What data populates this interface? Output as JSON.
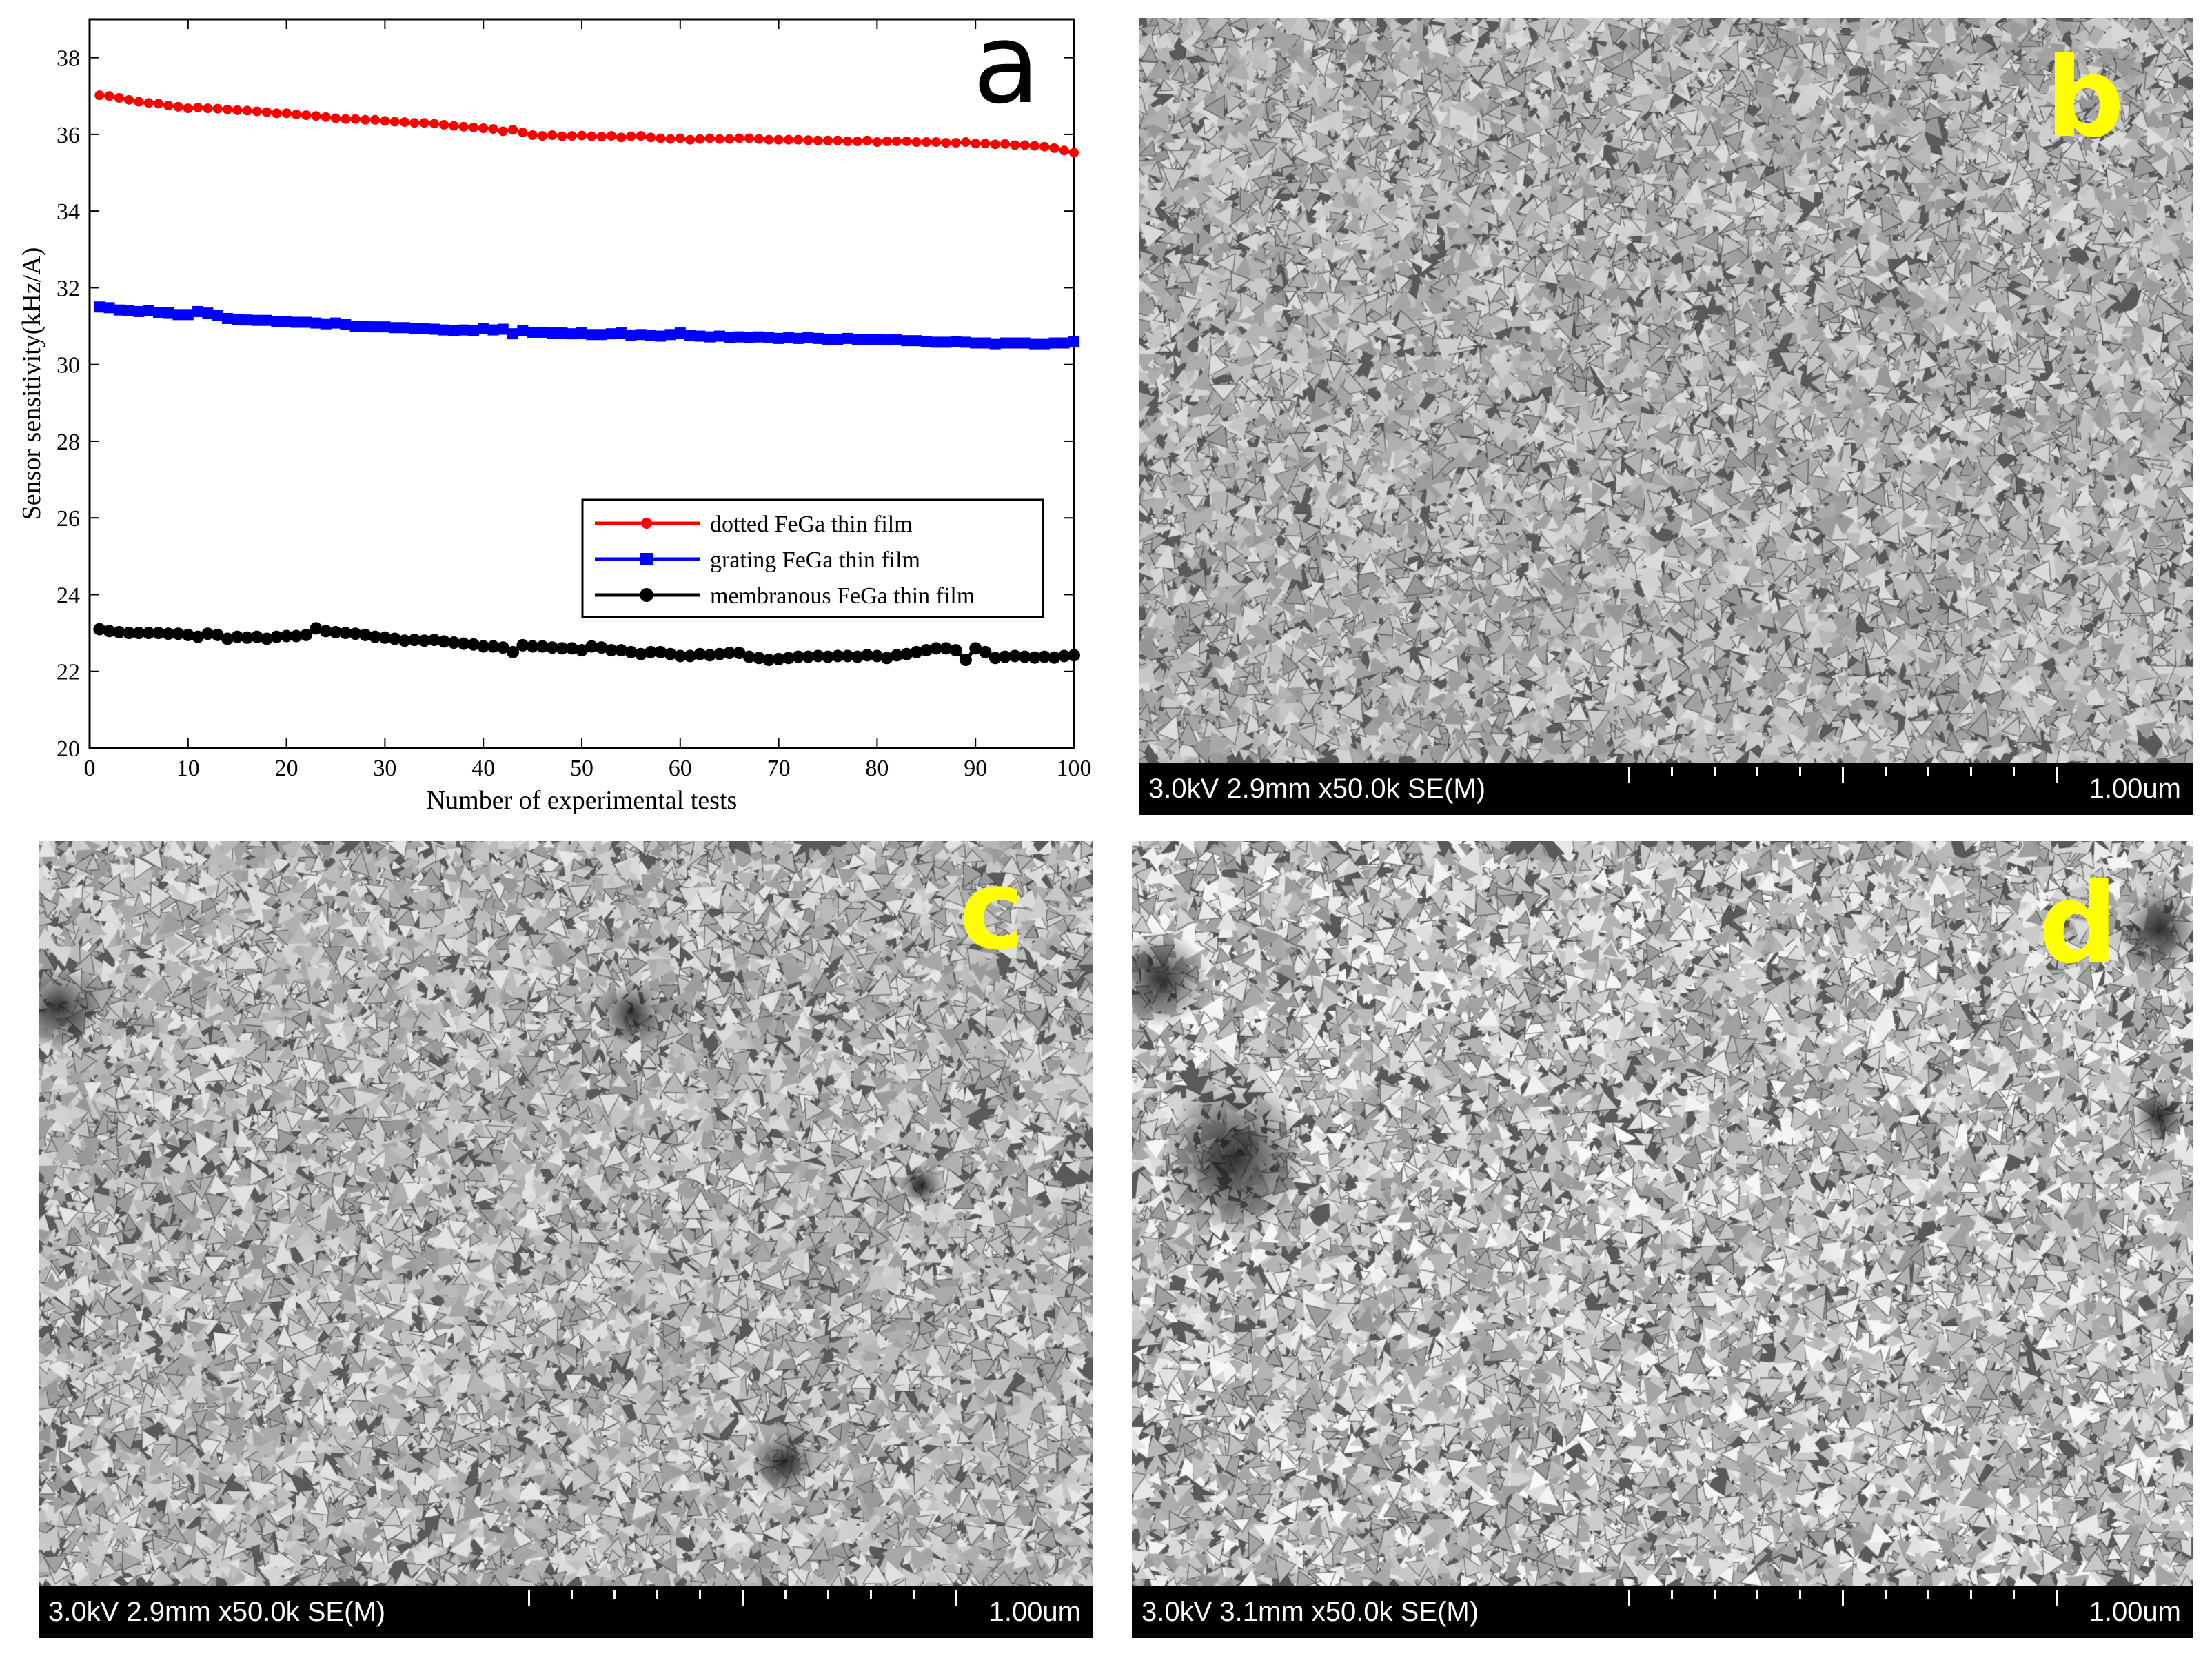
{
  "chart_data": {
    "type": "line",
    "panel_label": "a",
    "xlabel": "Number of experimental tests",
    "ylabel": "Sensor sensitivity(kHz/A)",
    "xlim": [
      0,
      100
    ],
    "ylim": [
      20,
      39
    ],
    "xticks": [
      "0",
      "10",
      "20",
      "30",
      "40",
      "50",
      "60",
      "70",
      "80",
      "90",
      "100"
    ],
    "yticks": [
      "20",
      "22",
      "24",
      "26",
      "28",
      "30",
      "32",
      "34",
      "36",
      "38"
    ],
    "legend_position": "center-right",
    "grid": false,
    "series": [
      {
        "name": "dotted FeGa thin film",
        "color": "#ff0000",
        "marker": "circle",
        "x": [
          1,
          2,
          3,
          4,
          5,
          6,
          7,
          8,
          9,
          10,
          11,
          12,
          13,
          14,
          15,
          16,
          17,
          18,
          19,
          20,
          21,
          22,
          23,
          24,
          25,
          26,
          27,
          28,
          29,
          30,
          31,
          32,
          33,
          34,
          35,
          36,
          37,
          38,
          39,
          40,
          41,
          42,
          43,
          44,
          45,
          46,
          47,
          48,
          49,
          50,
          51,
          52,
          53,
          54,
          55,
          56,
          57,
          58,
          59,
          60,
          61,
          62,
          63,
          64,
          65,
          66,
          67,
          68,
          69,
          70,
          71,
          72,
          73,
          74,
          75,
          76,
          77,
          78,
          79,
          80,
          81,
          82,
          83,
          84,
          85,
          86,
          87,
          88,
          89,
          90,
          91,
          92,
          93,
          94,
          95,
          96,
          97,
          98,
          99,
          100
        ],
        "y": [
          37.02,
          37.0,
          36.95,
          36.9,
          36.85,
          36.82,
          36.8,
          36.75,
          36.72,
          36.68,
          36.7,
          36.68,
          36.67,
          36.65,
          36.63,
          36.62,
          36.6,
          36.58,
          36.55,
          36.55,
          36.52,
          36.5,
          36.48,
          36.45,
          36.42,
          36.4,
          36.4,
          36.38,
          36.38,
          36.35,
          36.33,
          36.32,
          36.3,
          36.3,
          36.28,
          36.25,
          36.22,
          36.2,
          36.18,
          36.16,
          36.14,
          36.08,
          36.12,
          36.05,
          35.98,
          35.96,
          35.98,
          35.95,
          35.96,
          35.97,
          35.95,
          35.94,
          35.96,
          35.92,
          35.95,
          35.96,
          35.92,
          35.9,
          35.88,
          35.9,
          35.86,
          35.88,
          35.9,
          35.88,
          35.88,
          35.9,
          35.9,
          35.88,
          35.86,
          35.86,
          35.86,
          35.86,
          35.85,
          35.84,
          35.84,
          35.84,
          35.82,
          35.82,
          35.84,
          35.8,
          35.82,
          35.82,
          35.82,
          35.8,
          35.8,
          35.8,
          35.78,
          35.78,
          35.8,
          35.76,
          35.76,
          35.74,
          35.75,
          35.72,
          35.72,
          35.7,
          35.68,
          35.64,
          35.58,
          35.52
        ]
      },
      {
        "name": "grating FeGa thin film",
        "color": "#0000ff",
        "marker": "square",
        "x": [
          1,
          2,
          3,
          4,
          5,
          6,
          7,
          8,
          9,
          10,
          11,
          12,
          13,
          14,
          15,
          16,
          17,
          18,
          19,
          20,
          21,
          22,
          23,
          24,
          25,
          26,
          27,
          28,
          29,
          30,
          31,
          32,
          33,
          34,
          35,
          36,
          37,
          38,
          39,
          40,
          41,
          42,
          43,
          44,
          45,
          46,
          47,
          48,
          49,
          50,
          51,
          52,
          53,
          54,
          55,
          56,
          57,
          58,
          59,
          60,
          61,
          62,
          63,
          64,
          65,
          66,
          67,
          68,
          69,
          70,
          71,
          72,
          73,
          74,
          75,
          76,
          77,
          78,
          79,
          80,
          81,
          82,
          83,
          84,
          85,
          86,
          87,
          88,
          89,
          90,
          91,
          92,
          93,
          94,
          95,
          96,
          97,
          98,
          99,
          100
        ],
        "y": [
          31.5,
          31.48,
          31.42,
          31.4,
          31.38,
          31.4,
          31.36,
          31.35,
          31.3,
          31.3,
          31.38,
          31.34,
          31.28,
          31.2,
          31.18,
          31.16,
          31.15,
          31.15,
          31.12,
          31.12,
          31.1,
          31.1,
          31.08,
          31.06,
          31.08,
          31.04,
          31.0,
          31.0,
          30.98,
          30.98,
          30.96,
          30.96,
          30.94,
          30.94,
          30.92,
          30.9,
          30.88,
          30.9,
          30.88,
          30.94,
          30.9,
          30.92,
          30.8,
          30.88,
          30.84,
          30.84,
          30.82,
          30.82,
          30.8,
          30.82,
          30.78,
          30.78,
          30.8,
          30.82,
          30.76,
          30.78,
          30.76,
          30.74,
          30.78,
          30.82,
          30.76,
          30.74,
          30.72,
          30.74,
          30.7,
          30.72,
          30.7,
          30.72,
          30.7,
          30.68,
          30.7,
          30.68,
          30.7,
          30.68,
          30.66,
          30.66,
          30.68,
          30.66,
          30.66,
          30.66,
          30.64,
          30.66,
          30.62,
          30.62,
          30.6,
          30.58,
          30.58,
          30.6,
          30.58,
          30.56,
          30.56,
          30.54,
          30.56,
          30.56,
          30.56,
          30.54,
          30.54,
          30.56,
          30.56,
          30.6
        ]
      },
      {
        "name": "membranous FeGa thin film",
        "color": "#000000",
        "marker": "circle",
        "x": [
          1,
          2,
          3,
          4,
          5,
          6,
          7,
          8,
          9,
          10,
          11,
          12,
          13,
          14,
          15,
          16,
          17,
          18,
          19,
          20,
          21,
          22,
          23,
          24,
          25,
          26,
          27,
          28,
          29,
          30,
          31,
          32,
          33,
          34,
          35,
          36,
          37,
          38,
          39,
          40,
          41,
          42,
          43,
          44,
          45,
          46,
          47,
          48,
          49,
          50,
          51,
          52,
          53,
          54,
          55,
          56,
          57,
          58,
          59,
          60,
          61,
          62,
          63,
          64,
          65,
          66,
          67,
          68,
          69,
          70,
          71,
          72,
          73,
          74,
          75,
          76,
          77,
          78,
          79,
          80,
          81,
          82,
          83,
          84,
          85,
          86,
          87,
          88,
          89,
          90,
          91,
          92,
          93,
          94,
          95,
          96,
          97,
          98,
          99,
          100
        ],
        "y": [
          23.1,
          23.05,
          23.02,
          23.0,
          23.0,
          23.0,
          23.0,
          22.98,
          22.98,
          22.95,
          22.9,
          22.98,
          22.95,
          22.85,
          22.9,
          22.88,
          22.9,
          22.85,
          22.9,
          22.92,
          22.92,
          22.95,
          23.12,
          23.05,
          23.02,
          23.0,
          22.98,
          22.95,
          22.9,
          22.88,
          22.85,
          22.8,
          22.82,
          22.8,
          22.82,
          22.78,
          22.75,
          22.72,
          22.7,
          22.65,
          22.65,
          22.62,
          22.5,
          22.68,
          22.65,
          22.65,
          22.62,
          22.6,
          22.6,
          22.55,
          22.65,
          22.62,
          22.55,
          22.55,
          22.5,
          22.45,
          22.5,
          22.5,
          22.45,
          22.4,
          22.4,
          22.45,
          22.42,
          22.45,
          22.48,
          22.48,
          22.38,
          22.35,
          22.3,
          22.32,
          22.35,
          22.38,
          22.38,
          22.4,
          22.38,
          22.4,
          22.4,
          22.38,
          22.42,
          22.4,
          22.35,
          22.42,
          22.45,
          22.5,
          22.55,
          22.6,
          22.6,
          22.55,
          22.3,
          22.6,
          22.5,
          22.35,
          22.38,
          22.4,
          22.38,
          22.36,
          22.38,
          22.36,
          22.4,
          22.42
        ]
      }
    ]
  },
  "sem_panels": [
    {
      "letter": "b",
      "info": "3.0kV 2.9mm x50.0k SE(M)",
      "scale": "1.00um"
    },
    {
      "letter": "c",
      "info": "3.0kV 2.9mm x50.0k SE(M)",
      "scale": "1.00um"
    },
    {
      "letter": "d",
      "info": "3.0kV 3.1mm x50.0k SE(M)",
      "scale": "1.00um"
    }
  ],
  "colors": {
    "panel_letter": "#ffff00",
    "sem_bar": "#000000"
  }
}
